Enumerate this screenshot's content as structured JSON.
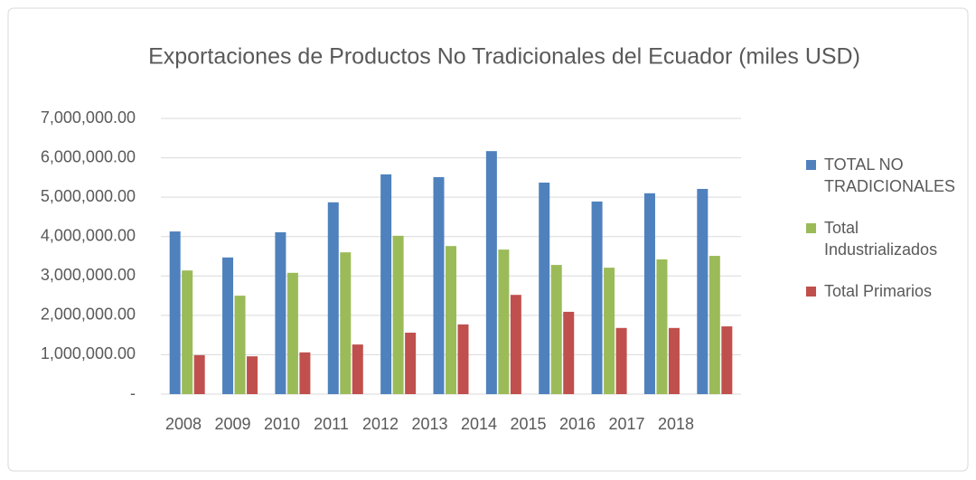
{
  "chart_data": {
    "type": "bar",
    "title": "Exportaciones de Productos No Tradicionales del Ecuador (miles USD)",
    "categories": [
      "2008",
      "2009",
      "2010",
      "2011",
      "2012",
      "2013",
      "2014",
      "2015",
      "2016",
      "2017",
      "2018"
    ],
    "series": [
      {
        "name": "TOTAL NO TRADICIONALES",
        "color": "#4f81bd",
        "values": [
          4130000,
          3470000,
          4110000,
          4870000,
          5580000,
          5510000,
          6170000,
          5370000,
          4890000,
          5100000,
          5210000
        ]
      },
      {
        "name": "Total Industrializados",
        "color": "#9bbb59",
        "values": [
          3140000,
          2500000,
          3080000,
          3600000,
          4020000,
          3760000,
          3670000,
          3280000,
          3210000,
          3420000,
          3510000
        ]
      },
      {
        "name": "Total Primarios",
        "color": "#c0504d",
        "values": [
          990000,
          960000,
          1060000,
          1260000,
          1560000,
          1770000,
          2520000,
          2090000,
          1680000,
          1680000,
          1720000
        ]
      }
    ],
    "ylim": [
      0,
      7000000
    ],
    "yticks": [
      {
        "value": 0,
        "label": "-"
      },
      {
        "value": 1000000,
        "label": "1,000,000.00"
      },
      {
        "value": 2000000,
        "label": "2,000,000.00"
      },
      {
        "value": 3000000,
        "label": "3,000,000.00"
      },
      {
        "value": 4000000,
        "label": "4,000,000.00"
      },
      {
        "value": 5000000,
        "label": "5,000,000.00"
      },
      {
        "value": 6000000,
        "label": "6,000,000.00"
      },
      {
        "value": 7000000,
        "label": "7,000,000.00"
      }
    ],
    "grid": true,
    "legend": "right"
  }
}
